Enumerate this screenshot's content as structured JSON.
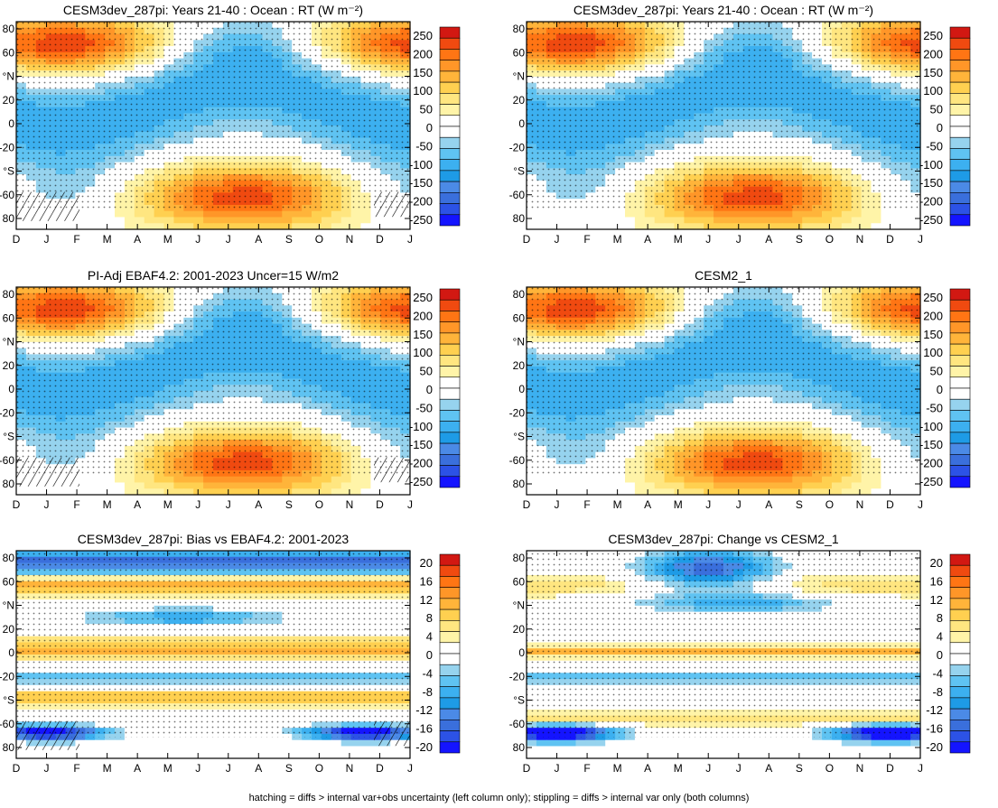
{
  "footer": "hatching = diffs > internal var+obs uncertainty (left column only); stippling = diffs > internal var only (both columns)",
  "colors": {
    "full_scale": [
      "#1414ff",
      "#2c52e6",
      "#3a6fdc",
      "#4b8ae6",
      "#1e9be6",
      "#3cb0f0",
      "#5fc3f2",
      "#96d3ee",
      "#ffffff",
      "#ffffff",
      "#fff4a8",
      "#ffe680",
      "#ffd050",
      "#ffb43a",
      "#ff9628",
      "#ff7514",
      "#f04a10",
      "#d21812"
    ],
    "diff_scale": [
      "#1414ff",
      "#2c52e6",
      "#3a6fdc",
      "#4b8ae6",
      "#1e9be6",
      "#3cb0f0",
      "#5fc3f2",
      "#96d3ee",
      "#ffffff",
      "#ffffff",
      "#fff4a8",
      "#ffe680",
      "#ffd050",
      "#ffb43a",
      "#ff9628",
      "#ff7514",
      "#f04a10",
      "#d21812"
    ]
  },
  "chart_data": [
    {
      "type": "heatmap",
      "title": "CESM3dev_287pi: Years 21-40 : Ocean : RT (W m⁻²)",
      "x_ticks": [
        "D",
        "J",
        "F",
        "M",
        "A",
        "M",
        "J",
        "J",
        "A",
        "S",
        "O",
        "N",
        "D",
        "J"
      ],
      "y_ticks": [
        "80",
        "60",
        "°N",
        "20",
        "0",
        "-20",
        "°S",
        "-60",
        "80"
      ],
      "colorbar_labels": [
        "250",
        "200",
        "150",
        "100",
        "50",
        "0",
        "-50",
        "-100",
        "-150",
        "-200",
        "-250"
      ],
      "colorbar_levels": 18,
      "field": "full",
      "hatch": true
    },
    {
      "type": "heatmap",
      "title": "CESM3dev_287pi: Years 21-40 : Ocean : RT (W m⁻²)",
      "x_ticks": [
        "D",
        "J",
        "F",
        "M",
        "A",
        "M",
        "J",
        "J",
        "A",
        "S",
        "O",
        "N",
        "D",
        "J"
      ],
      "y_ticks": [
        "80",
        "60",
        "°N",
        "20",
        "0",
        "-20",
        "°S",
        "-60",
        "80"
      ],
      "colorbar_labels": [
        "250",
        "200",
        "150",
        "100",
        "50",
        "0",
        "-50",
        "-100",
        "-150",
        "-200",
        "-250"
      ],
      "colorbar_levels": 18,
      "field": "full",
      "hatch": false
    },
    {
      "type": "heatmap",
      "title": "PI-Adj EBAF4.2: 2001-2023 Uncer=15 W/m2",
      "x_ticks": [
        "D",
        "J",
        "F",
        "M",
        "A",
        "M",
        "J",
        "J",
        "A",
        "S",
        "O",
        "N",
        "D",
        "J"
      ],
      "y_ticks": [
        "80",
        "60",
        "°N",
        "20",
        "0",
        "-20",
        "°S",
        "-60",
        "80"
      ],
      "colorbar_labels": [
        "250",
        "200",
        "150",
        "100",
        "50",
        "0",
        "-50",
        "-100",
        "-150",
        "-200",
        "-250"
      ],
      "colorbar_levels": 18,
      "field": "full",
      "hatch": true
    },
    {
      "type": "heatmap",
      "title": "CESM2_1",
      "x_ticks": [
        "D",
        "J",
        "F",
        "M",
        "A",
        "M",
        "J",
        "J",
        "A",
        "S",
        "O",
        "N",
        "D",
        "J"
      ],
      "y_ticks": [
        "80",
        "60",
        "°N",
        "20",
        "0",
        "-20",
        "°S",
        "-60",
        "80"
      ],
      "colorbar_labels": [
        "250",
        "200",
        "150",
        "100",
        "50",
        "0",
        "-50",
        "-100",
        "-150",
        "-200",
        "-250"
      ],
      "colorbar_levels": 18,
      "field": "full",
      "hatch": false
    },
    {
      "type": "heatmap",
      "title": "CESM3dev_287pi: Bias vs EBAF4.2: 2001-2023",
      "x_ticks": [
        "D",
        "J",
        "F",
        "M",
        "A",
        "M",
        "J",
        "J",
        "A",
        "S",
        "O",
        "N",
        "D",
        "J"
      ],
      "y_ticks": [
        "80",
        "60",
        "°N",
        "20",
        "0",
        "-20",
        "°S",
        "-60",
        "80"
      ],
      "colorbar_labels": [
        "20",
        "16",
        "12",
        "8",
        "4",
        "0",
        "-4",
        "-8",
        "-12",
        "-16",
        "-20"
      ],
      "colorbar_levels": 18,
      "field": "bias",
      "hatch": true
    },
    {
      "type": "heatmap",
      "title": "CESM3dev_287pi: Change vs CESM2_1",
      "x_ticks": [
        "D",
        "J",
        "F",
        "M",
        "A",
        "M",
        "J",
        "J",
        "A",
        "S",
        "O",
        "N",
        "D",
        "J"
      ],
      "y_ticks": [
        "80",
        "60",
        "°N",
        "20",
        "0",
        "-20",
        "°S",
        "-60",
        "80"
      ],
      "colorbar_labels": [
        "20",
        "16",
        "12",
        "8",
        "4",
        "0",
        "-4",
        "-8",
        "-12",
        "-16",
        "-20"
      ],
      "colorbar_levels": 18,
      "field": "change",
      "hatch": false
    }
  ]
}
